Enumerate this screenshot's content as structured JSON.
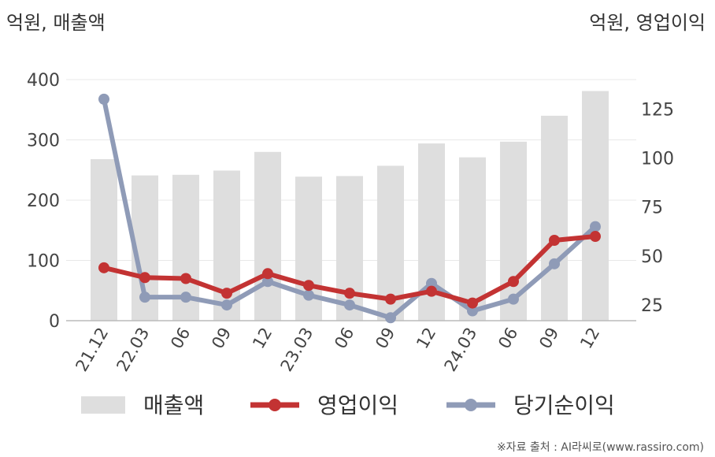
{
  "left_unit": "억원, 매출액",
  "right_unit": "억원, 영업이익",
  "source": "※자료 출처 : AI라씨로(www.rassiro.com)",
  "colors": {
    "bar": "#dedede",
    "operating": "#c33333",
    "net": "#8f9bb7",
    "grid": "#e8e8e8",
    "axis": "#bbbbbb"
  },
  "chart_data": {
    "type": "bar",
    "categories": [
      "21.12",
      "22.03",
      "06",
      "09",
      "12",
      "23.03",
      "06",
      "09",
      "12",
      "24.03",
      "06",
      "09",
      "12"
    ],
    "left_axis": {
      "ticks": [
        0,
        100,
        200,
        300,
        400
      ],
      "ylim": [
        0,
        400
      ]
    },
    "right_axis": {
      "ticks": [
        25,
        50,
        75,
        100,
        125
      ],
      "ylim": [
        17,
        140
      ]
    },
    "series": [
      {
        "name": "매출액",
        "type": "bar",
        "axis": "left",
        "values": [
          268,
          241,
          242,
          249,
          280,
          239,
          240,
          257,
          294,
          271,
          297,
          340,
          381
        ]
      },
      {
        "name": "영업이익",
        "type": "line",
        "axis": "right",
        "values": [
          44,
          39,
          38.5,
          31,
          41,
          35,
          31,
          28,
          32,
          26,
          37,
          58,
          60
        ]
      },
      {
        "name": "당기순이익",
        "type": "line",
        "axis": "right",
        "values": [
          130,
          29,
          29,
          25,
          37,
          30,
          25,
          18.5,
          36,
          22,
          28,
          46,
          65
        ]
      }
    ],
    "legend": "bottom"
  }
}
